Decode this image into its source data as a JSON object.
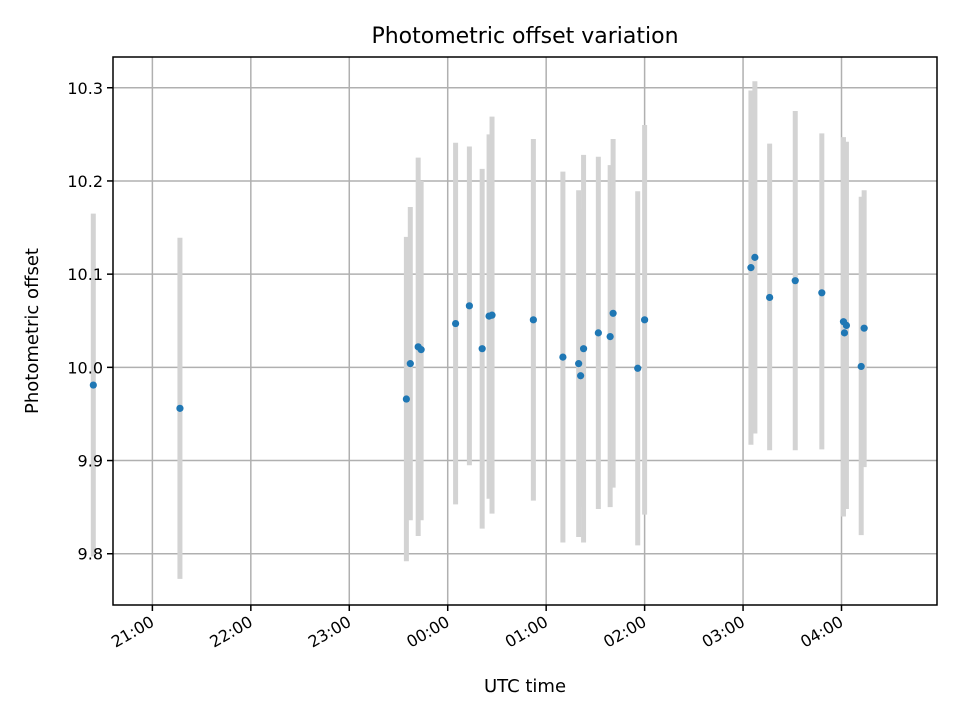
{
  "chart_data": {
    "type": "scatter",
    "title": "Photometric offset variation",
    "xlabel": "UTC time",
    "ylabel": "Photometric offset",
    "x_unit": "hours past 20:00 UTC of first day",
    "xlim": [
      0.6,
      8.97
    ],
    "ylim": [
      9.745,
      10.333
    ],
    "grid": true,
    "x_ticks": [
      {
        "h": 1,
        "label": "21:00"
      },
      {
        "h": 2,
        "label": "22:00"
      },
      {
        "h": 3,
        "label": "23:00"
      },
      {
        "h": 4,
        "label": "00:00"
      },
      {
        "h": 5,
        "label": "01:00"
      },
      {
        "h": 6,
        "label": "02:00"
      },
      {
        "h": 7,
        "label": "03:00"
      },
      {
        "h": 8,
        "label": "04:00"
      }
    ],
    "y_ticks": [
      {
        "v": 9.8,
        "label": "9.8"
      },
      {
        "v": 9.9,
        "label": "9.9"
      },
      {
        "v": 10.0,
        "label": "10.0"
      },
      {
        "v": 10.1,
        "label": "10.1"
      },
      {
        "v": 10.2,
        "label": "10.2"
      },
      {
        "v": 10.3,
        "label": "10.3"
      }
    ],
    "points": [
      {
        "x": 0.4,
        "y": 9.981,
        "ylo": 9.797,
        "yhi": 10.165
      },
      {
        "x": 1.28,
        "y": 9.956,
        "ylo": 9.773,
        "yhi": 10.139
      },
      {
        "x": 3.58,
        "y": 9.966,
        "ylo": 9.792,
        "yhi": 10.14
      },
      {
        "x": 3.62,
        "y": 10.004,
        "ylo": 9.836,
        "yhi": 10.172
      },
      {
        "x": 3.7,
        "y": 10.022,
        "ylo": 9.819,
        "yhi": 10.225
      },
      {
        "x": 3.73,
        "y": 10.019,
        "ylo": 9.836,
        "yhi": 10.2
      },
      {
        "x": 4.08,
        "y": 10.047,
        "ylo": 9.853,
        "yhi": 10.241
      },
      {
        "x": 4.22,
        "y": 10.066,
        "ylo": 9.895,
        "yhi": 10.237
      },
      {
        "x": 4.35,
        "y": 10.02,
        "ylo": 9.827,
        "yhi": 10.213
      },
      {
        "x": 4.42,
        "y": 10.055,
        "ylo": 9.859,
        "yhi": 10.25
      },
      {
        "x": 4.45,
        "y": 10.056,
        "ylo": 9.843,
        "yhi": 10.269
      },
      {
        "x": 4.87,
        "y": 10.051,
        "ylo": 9.857,
        "yhi": 10.245
      },
      {
        "x": 5.17,
        "y": 10.011,
        "ylo": 9.812,
        "yhi": 10.21
      },
      {
        "x": 5.33,
        "y": 10.004,
        "ylo": 9.818,
        "yhi": 10.19
      },
      {
        "x": 5.35,
        "y": 9.991,
        "ylo": 9.85,
        "yhi": 10.17
      },
      {
        "x": 5.38,
        "y": 10.02,
        "ylo": 9.812,
        "yhi": 10.228
      },
      {
        "x": 5.53,
        "y": 10.037,
        "ylo": 9.848,
        "yhi": 10.226
      },
      {
        "x": 5.65,
        "y": 10.033,
        "ylo": 9.85,
        "yhi": 10.217
      },
      {
        "x": 5.68,
        "y": 10.058,
        "ylo": 9.871,
        "yhi": 10.245
      },
      {
        "x": 5.93,
        "y": 9.999,
        "ylo": 9.809,
        "yhi": 10.189
      },
      {
        "x": 6.0,
        "y": 10.051,
        "ylo": 9.842,
        "yhi": 10.26
      },
      {
        "x": 7.08,
        "y": 10.107,
        "ylo": 9.917,
        "yhi": 10.297
      },
      {
        "x": 7.12,
        "y": 10.118,
        "ylo": 9.929,
        "yhi": 10.307
      },
      {
        "x": 7.27,
        "y": 10.075,
        "ylo": 9.911,
        "yhi": 10.24
      },
      {
        "x": 7.53,
        "y": 10.093,
        "ylo": 9.911,
        "yhi": 10.275
      },
      {
        "x": 7.8,
        "y": 10.08,
        "ylo": 9.912,
        "yhi": 10.251
      },
      {
        "x": 8.02,
        "y": 10.049,
        "ylo": 9.84,
        "yhi": 10.247
      },
      {
        "x": 8.03,
        "y": 10.037,
        "ylo": 9.86,
        "yhi": 10.23
      },
      {
        "x": 8.05,
        "y": 10.045,
        "ylo": 9.848,
        "yhi": 10.242
      },
      {
        "x": 8.2,
        "y": 10.001,
        "ylo": 9.82,
        "yhi": 10.183
      },
      {
        "x": 8.23,
        "y": 10.042,
        "ylo": 9.893,
        "yhi": 10.19
      }
    ]
  }
}
